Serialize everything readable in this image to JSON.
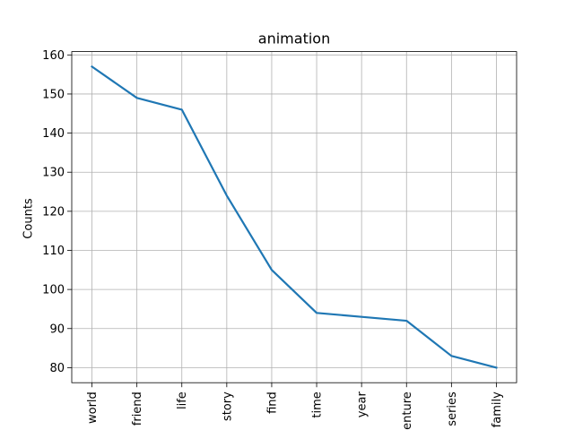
{
  "chart_data": {
    "type": "line",
    "title": "animation",
    "xlabel": "",
    "ylabel": "Counts",
    "categories": [
      "world",
      "friend",
      "life",
      "story",
      "find",
      "time",
      "year",
      "adventure",
      "series",
      "family"
    ],
    "series": [
      {
        "values": [
          157,
          149,
          146,
          124,
          105,
          94,
          93,
          92,
          83,
          80
        ]
      }
    ],
    "ylim": [
      76.15,
      160.85
    ],
    "yticks": [
      80,
      90,
      100,
      110,
      120,
      130,
      140,
      150,
      160
    ],
    "grid": true,
    "line_color": "#1f77b4"
  }
}
